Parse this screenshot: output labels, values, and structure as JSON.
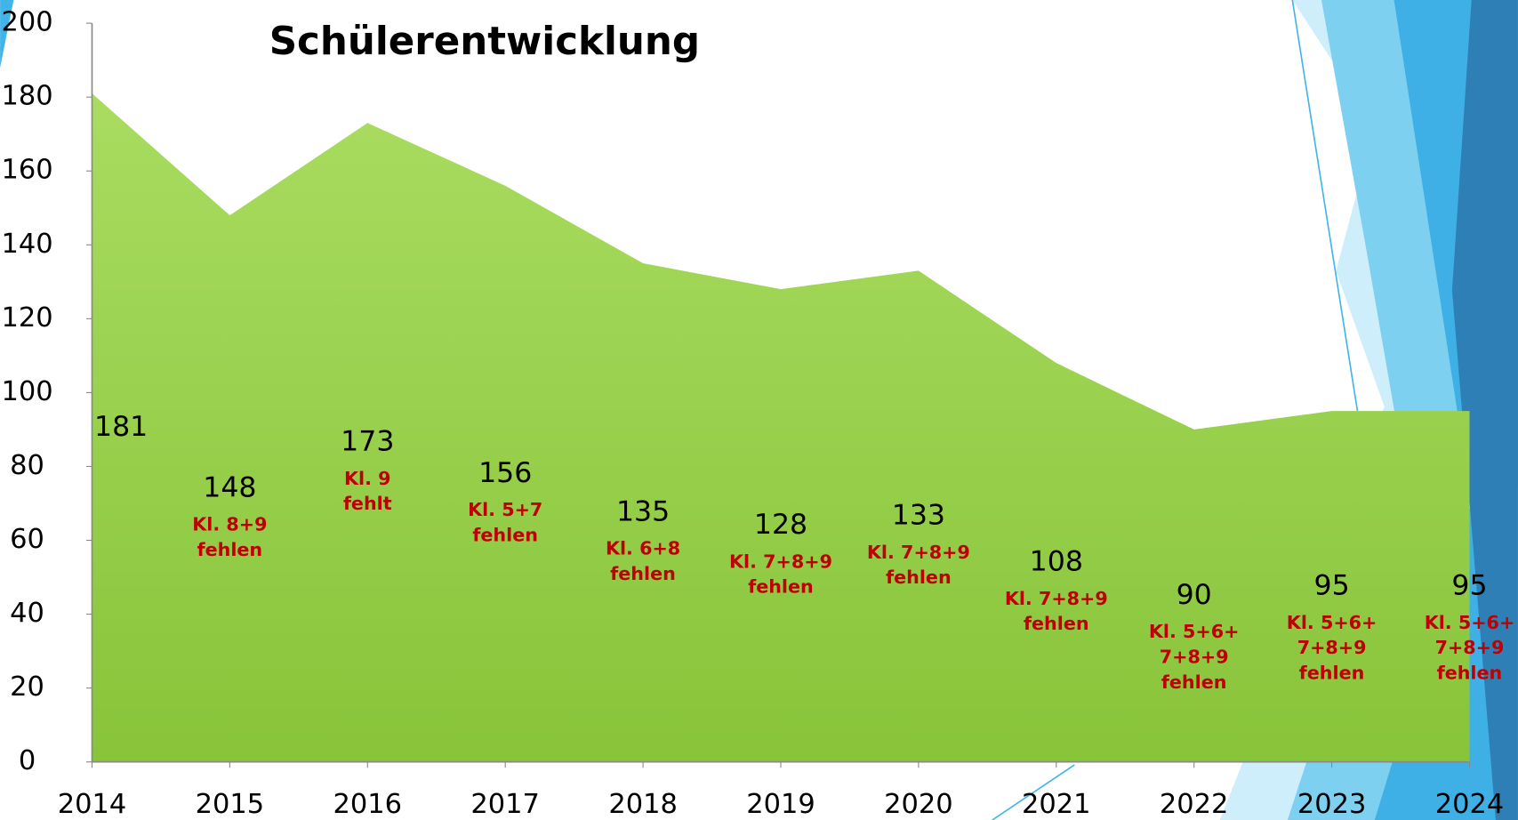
{
  "chart_data": {
    "type": "area",
    "title": "Schülerentwicklung",
    "x": [
      2014,
      2015,
      2016,
      2017,
      2018,
      2019,
      2020,
      2021,
      2022,
      2023,
      2024
    ],
    "values": [
      181,
      148,
      173,
      156,
      135,
      128,
      133,
      108,
      90,
      95,
      95
    ],
    "annotations": [
      null,
      [
        "Kl. 8+9",
        "fehlen"
      ],
      [
        "Kl. 9",
        "fehlt"
      ],
      [
        "Kl. 5+7",
        "fehlen"
      ],
      [
        "Kl. 6+8",
        "fehlen"
      ],
      [
        "Kl. 7+8+9",
        "fehlen"
      ],
      [
        "Kl. 7+8+9",
        "fehlen"
      ],
      [
        "Kl. 7+8+9",
        "fehlen"
      ],
      [
        "Kl. 5+6+",
        "7+8+9",
        "fehlen"
      ],
      [
        "Kl. 5+6+",
        "7+8+9",
        "fehlen"
      ],
      [
        "Kl. 5+6+",
        "7+8+9",
        "fehlen"
      ]
    ],
    "color": "#95d047",
    "xlim": [
      2014,
      2024
    ],
    "xticks": [
      2014,
      2015,
      2016,
      2017,
      2018,
      2019,
      2020,
      2021,
      2022,
      2023,
      2024
    ],
    "ylim": [
      0,
      200
    ],
    "yticks": [
      0,
      20,
      40,
      60,
      80,
      100,
      120,
      140,
      160,
      180,
      200
    ]
  }
}
